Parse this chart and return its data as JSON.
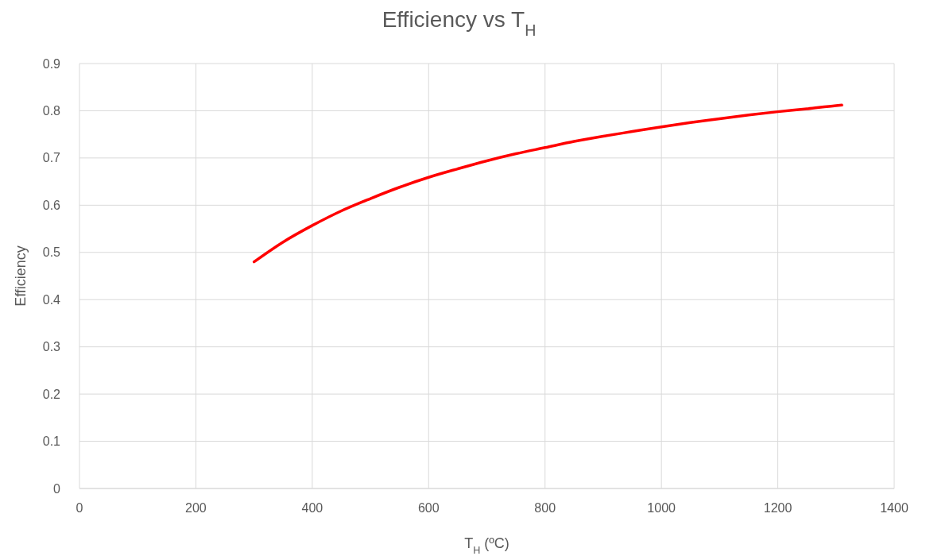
{
  "chart_data": {
    "type": "line",
    "title": "Efficiency vs T$_{H}$",
    "xlabel": "T$_{H}$ (ºC)",
    "ylabel": "Efficiency",
    "x": [
      300,
      350,
      400,
      450,
      500,
      550,
      600,
      650,
      700,
      750,
      800,
      850,
      900,
      950,
      1000,
      1050,
      1100,
      1150,
      1200,
      1250,
      1300,
      1310
    ],
    "series": [
      {
        "color": "#ff0000",
        "values": [
          0.48,
          0.522,
          0.557,
          0.588,
          0.614,
          0.638,
          0.659,
          0.677,
          0.694,
          0.709,
          0.722,
          0.735,
          0.746,
          0.756,
          0.766,
          0.775,
          0.783,
          0.791,
          0.798,
          0.804,
          0.811,
          0.812
        ]
      }
    ],
    "xlim": [
      0,
      1400
    ],
    "xticks": [
      0,
      200,
      400,
      600,
      800,
      1000,
      1200,
      1400
    ],
    "ylim": [
      0,
      0.9
    ],
    "yticks": [
      0,
      0.1,
      0.2,
      0.3,
      0.4,
      0.5,
      0.6,
      0.7,
      0.8,
      0.9
    ],
    "grid": true,
    "marker": "none",
    "line_style": "solid"
  }
}
